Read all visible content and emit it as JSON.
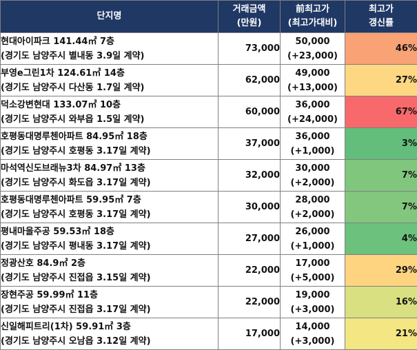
{
  "headers": {
    "name": "단지명",
    "price_line1": "거래금액",
    "price_line2": "(만원)",
    "prev_line1": "前최고가",
    "prev_line2": "(최고가대비)",
    "rate_line1": "최고가",
    "rate_line2": "갱신률"
  },
  "rows": [
    {
      "name": "현대아이파크 141.44㎡ 7층",
      "location": "(경기도 남양주시 별내동 3.9일 계약)",
      "price": "73,000",
      "prev_high": "50,000",
      "diff": "(+23,000)",
      "rate": "46%",
      "color": "#f8a275"
    },
    {
      "name": "부영e그린1차 124.61㎡ 14층",
      "location": "(경기도 남양주시 다산동 1.7일 계약)",
      "price": "62,000",
      "prev_high": "49,000",
      "diff": "(+13,000)",
      "rate": "27%",
      "color": "#fdd782"
    },
    {
      "name": "덕소강변현대 133.07㎡ 10층",
      "location": "(경기도 남양주시 와부읍 1.5일 계약)",
      "price": "60,000",
      "prev_high": "36,000",
      "diff": "(+24,000)",
      "rate": "67%",
      "color": "#f8696b"
    },
    {
      "name": "호평동대명루첸아파트 84.95㎡ 18층",
      "location": "(경기도 남양주시 호평동 3.17일 계약)",
      "price": "37,000",
      "prev_high": "36,000",
      "diff": "(+1,000)",
      "rate": "3%",
      "color": "#63be7b"
    },
    {
      "name": "마석역신도브래뉴3차 84.97㎡ 13층",
      "location": "(경기도 남양주시 화도읍 3.17일 계약)",
      "price": "32,000",
      "prev_high": "30,000",
      "diff": "(+2,000)",
      "rate": "7%",
      "color": "#80c77d"
    },
    {
      "name": "호평동대명루첸아파트 59.95㎡ 7층",
      "location": "(경기도 남양주시 호평동 3.17일 계약)",
      "price": "30,000",
      "prev_high": "28,000",
      "diff": "(+2,000)",
      "rate": "7%",
      "color": "#82c77d"
    },
    {
      "name": "평내마을주공 59.53㎡ 18층",
      "location": "(경기도 남양주시 평내동 3.17일 계약)",
      "price": "27,000",
      "prev_high": "26,000",
      "diff": "(+1,000)",
      "rate": "4%",
      "color": "#6cc17c"
    },
    {
      "name": "정광산호 84.9㎡ 2층",
      "location": "(경기도 남양주시 진접읍 3.15일 계약)",
      "price": "22,000",
      "prev_high": "17,000",
      "diff": "(+5,000)",
      "rate": "29%",
      "color": "#fed481"
    },
    {
      "name": "장현주공 59.99㎡ 11층",
      "location": "(경기도 남양주시 진접읍 3.17일 계약)",
      "price": "22,000",
      "prev_high": "19,000",
      "diff": "(+3,000)",
      "rate": "16%",
      "color": "#d8e082"
    },
    {
      "name": "신일해피트리(1차) 59.91㎡ 3층",
      "location": "(경기도 남양주시 오남읍 3.12일 계약)",
      "price": "17,000",
      "prev_high": "14,000",
      "diff": "(+3,000)",
      "rate": "21%",
      "color": "#f3e683"
    }
  ]
}
